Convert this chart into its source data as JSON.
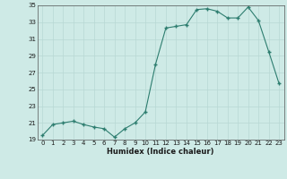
{
  "x": [
    0,
    1,
    2,
    3,
    4,
    5,
    6,
    7,
    8,
    9,
    10,
    11,
    12,
    13,
    14,
    15,
    16,
    17,
    18,
    19,
    20,
    21,
    22,
    23
  ],
  "y": [
    19.5,
    20.8,
    21.0,
    21.2,
    20.8,
    20.5,
    20.3,
    19.3,
    20.3,
    21.0,
    22.3,
    28.0,
    32.3,
    32.5,
    32.7,
    34.5,
    34.6,
    34.3,
    33.5,
    33.5,
    34.8,
    33.2,
    29.5,
    25.7
  ],
  "xlabel": "Humidex (Indice chaleur)",
  "ylim": [
    19,
    35
  ],
  "xlim": [
    -0.5,
    23.5
  ],
  "yticks": [
    19,
    21,
    23,
    25,
    27,
    29,
    31,
    33,
    35
  ],
  "xticks": [
    0,
    1,
    2,
    3,
    4,
    5,
    6,
    7,
    8,
    9,
    10,
    11,
    12,
    13,
    14,
    15,
    16,
    17,
    18,
    19,
    20,
    21,
    22,
    23
  ],
  "line_color": "#2d7d6f",
  "bg_color": "#ceeae6",
  "grid_color": "#b8d8d4"
}
